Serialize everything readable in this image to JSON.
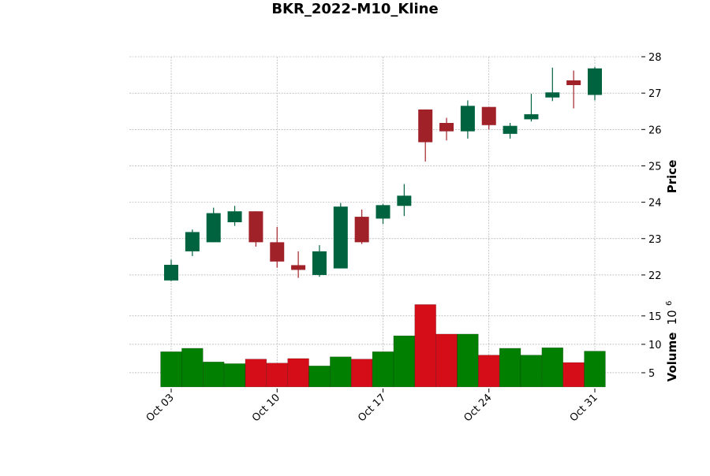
{
  "chart_data": {
    "type": "candlestick",
    "title": "BKR_2022-M10_Kline",
    "ylabel": "Price",
    "volume_label": "Volume",
    "volume_exponent_base": "10",
    "volume_exponent": "6",
    "price_ylim": [
      21.5,
      28
    ],
    "price_ticks": [
      "22",
      "23",
      "24",
      "25",
      "26",
      "27",
      "28"
    ],
    "volume_ylim": [
      2.5,
      19
    ],
    "volume_ticks": [
      "5",
      "10",
      "15"
    ],
    "x_ticks": [
      {
        "label": "Oct 03",
        "index": 0
      },
      {
        "label": "Oct 10",
        "index": 5
      },
      {
        "label": "Oct 17",
        "index": 10
      },
      {
        "label": "Oct 24",
        "index": 15
      },
      {
        "label": "Oct 31",
        "index": 20
      }
    ],
    "colors": {
      "up_candle": "#006340",
      "down_candle": "#a02128",
      "up_volume": "#007f00",
      "down_volume": "#d50d18",
      "grid": "#a0a0a0"
    },
    "grid": true,
    "candles": [
      {
        "date": "2022-10-03",
        "open": 21.85,
        "high": 22.42,
        "low": 21.83,
        "close": 22.28,
        "volume": 8.7
      },
      {
        "date": "2022-10-04",
        "open": 22.65,
        "high": 23.25,
        "low": 22.52,
        "close": 23.18,
        "volume": 9.3
      },
      {
        "date": "2022-10-05",
        "open": 22.9,
        "high": 23.85,
        "low": 22.9,
        "close": 23.7,
        "volume": 6.9
      },
      {
        "date": "2022-10-06",
        "open": 23.45,
        "high": 23.9,
        "low": 23.35,
        "close": 23.75,
        "volume": 6.6
      },
      {
        "date": "2022-10-07",
        "open": 23.75,
        "high": 23.75,
        "low": 22.78,
        "close": 22.9,
        "volume": 7.4
      },
      {
        "date": "2022-10-10",
        "open": 22.9,
        "high": 23.32,
        "low": 22.2,
        "close": 22.37,
        "volume": 6.7
      },
      {
        "date": "2022-10-11",
        "open": 22.27,
        "high": 22.65,
        "low": 21.92,
        "close": 22.14,
        "volume": 7.5
      },
      {
        "date": "2022-10-12",
        "open": 22.0,
        "high": 22.82,
        "low": 21.95,
        "close": 22.65,
        "volume": 6.2
      },
      {
        "date": "2022-10-13",
        "open": 22.18,
        "high": 23.98,
        "low": 22.18,
        "close": 23.88,
        "volume": 7.8
      },
      {
        "date": "2022-10-14",
        "open": 23.6,
        "high": 23.8,
        "low": 22.85,
        "close": 22.9,
        "volume": 7.4
      },
      {
        "date": "2022-10-17",
        "open": 23.55,
        "high": 23.95,
        "low": 23.4,
        "close": 23.92,
        "volume": 8.7
      },
      {
        "date": "2022-10-18",
        "open": 23.9,
        "high": 24.5,
        "low": 23.62,
        "close": 24.18,
        "volume": 11.5
      },
      {
        "date": "2022-10-19",
        "open": 26.55,
        "high": 26.55,
        "low": 25.12,
        "close": 25.65,
        "volume": 17.0
      },
      {
        "date": "2022-10-20",
        "open": 26.18,
        "high": 26.32,
        "low": 25.7,
        "close": 25.95,
        "volume": 11.8
      },
      {
        "date": "2022-10-21",
        "open": 25.95,
        "high": 26.8,
        "low": 25.75,
        "close": 26.65,
        "volume": 11.8
      },
      {
        "date": "2022-10-24",
        "open": 26.62,
        "high": 26.62,
        "low": 26.0,
        "close": 26.12,
        "volume": 8.1
      },
      {
        "date": "2022-10-25",
        "open": 25.88,
        "high": 26.18,
        "low": 25.75,
        "close": 26.1,
        "volume": 9.3
      },
      {
        "date": "2022-10-26",
        "open": 26.28,
        "high": 26.98,
        "low": 26.22,
        "close": 26.42,
        "volume": 8.1
      },
      {
        "date": "2022-10-27",
        "open": 26.88,
        "high": 27.7,
        "low": 26.78,
        "close": 27.02,
        "volume": 9.4
      },
      {
        "date": "2022-10-28",
        "open": 27.35,
        "high": 27.62,
        "low": 26.58,
        "close": 27.22,
        "volume": 6.8
      },
      {
        "date": "2022-10-31",
        "open": 26.95,
        "high": 27.72,
        "low": 26.8,
        "close": 27.68,
        "volume": 8.8
      }
    ]
  }
}
